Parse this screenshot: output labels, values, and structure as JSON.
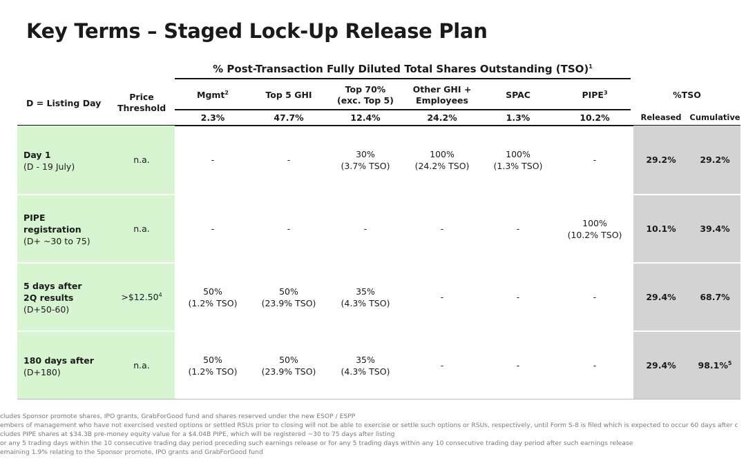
{
  "title": "Key Terms – Staged Lock-Up Release Plan",
  "super_header": "% Post-Transaction Fully Diluted Total Shares Outstanding (TSO)",
  "super_header_sup": "1",
  "col_day": "D = Listing Day",
  "col_price": "Price Threshold",
  "groups": [
    {
      "name": "Mgmt",
      "sup": "2",
      "pct": "2.3%"
    },
    {
      "name": "Top 5 GHI",
      "sup": "",
      "pct": "47.7%"
    },
    {
      "name": "Top 70%\n(exc. Top 5)",
      "sup": "",
      "pct": "12.4%"
    },
    {
      "name": "Other GHI +\nEmployees",
      "sup": "",
      "pct": "24.2%"
    },
    {
      "name": "SPAC",
      "sup": "",
      "pct": "1.3%"
    },
    {
      "name": "PIPE",
      "sup": "3",
      "pct": "10.2%"
    }
  ],
  "tso_header": "%TSO",
  "released_label": "Released",
  "cumulative_label": "Cumulative",
  "rows": [
    {
      "label_main": "Day 1",
      "label_sub": "(D - 19 July)",
      "price": "n.a.",
      "price_sup": "",
      "cells": [
        "-",
        "-",
        "30%\n(3.7% TSO)",
        "100%\n(24.2% TSO)",
        "100%\n(1.3% TSO)",
        "-"
      ],
      "released": "29.2%",
      "cumulative": "29.2%",
      "cum_sup": ""
    },
    {
      "label_main": "PIPE\nregistration",
      "label_sub": "(D+ ~30 to 75)",
      "price": "n.a.",
      "price_sup": "",
      "cells": [
        "-",
        "-",
        "-",
        "-",
        "-",
        "100%\n(10.2% TSO)"
      ],
      "released": "10.1%",
      "cumulative": "39.4%",
      "cum_sup": ""
    },
    {
      "label_main": "5 days after\n2Q results",
      "label_sub": "(D+50-60)",
      "price": ">$12.50",
      "price_sup": "4",
      "cells": [
        "50%\n(1.2% TSO)",
        "50%\n(23.9% TSO)",
        "35%\n(4.3% TSO)",
        "-",
        "-",
        "-"
      ],
      "released": "29.4%",
      "cumulative": "68.7%",
      "cum_sup": ""
    },
    {
      "label_main": "180 days after",
      "label_sub": "(D+180)",
      "price": "n.a.",
      "price_sup": "",
      "cells": [
        "50%\n(1.2% TSO)",
        "50%\n(23.9% TSO)",
        "35%\n(4.3% TSO)",
        "-",
        "-",
        "-"
      ],
      "released": "29.4%",
      "cumulative": "98.1%",
      "cum_sup": "5"
    }
  ],
  "footnotes": [
    "cludes Sponsor promote shares, IPO grants, GrabForGood fund and shares reserved under the new ESOP / ESPP",
    "embers of management who have not exercised vested options or settled RSUs prior to closing will not be able to exercise or settle such options or RSUs, respectively, until Form S-8 is filed which is expected to occur 60 days after c",
    "cludes PIPE shares at $34.3B pre-money equity value for a $4.04B PIPE, which will be registered ~30 to 75 days after listing",
    "or any 5 trading days within the 10 consecutive trading day period preceding such earnings release or for any 5 trading days within any 10 consecutive trading day period after such earnings release",
    "emaining 1.9% relating to the Sponsor promote, IPO grants and GrabForGood fund"
  ]
}
